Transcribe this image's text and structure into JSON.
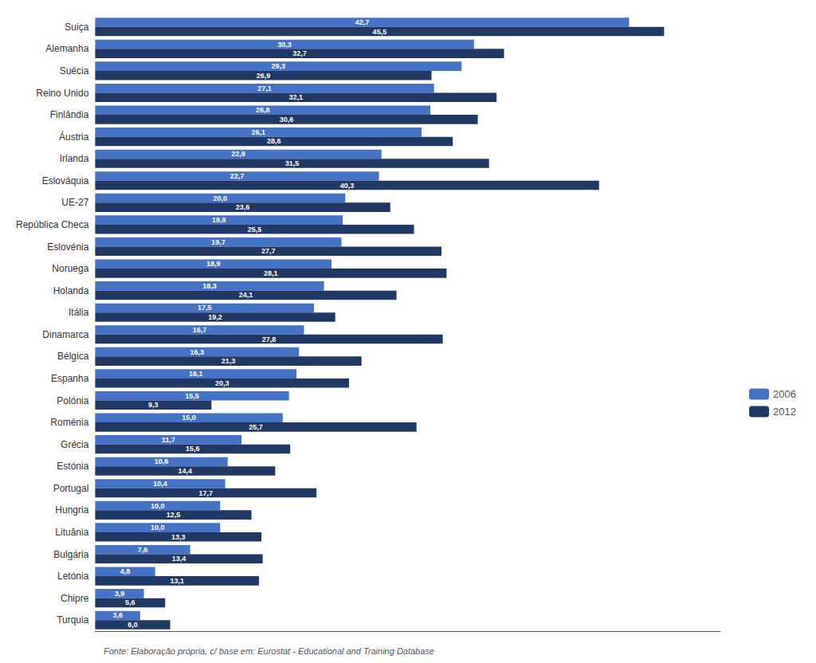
{
  "chart_data": {
    "type": "bar",
    "orientation": "horizontal",
    "categories": [
      "Suiça",
      "Alemanha",
      "Suécia",
      "Reino Unido",
      "Finlândia",
      "Áustria",
      "Irlanda",
      "Eslováquia",
      "UE-27",
      "República Checa",
      "Eslovénia",
      "Noruega",
      "Holanda",
      "Itália",
      "Dinamarca",
      "Bélgica",
      "Espanha",
      "Polónia",
      "Roménia",
      "Grécia",
      "Estónia",
      "Portugal",
      "Hungria",
      "Lituânia",
      "Bulgária",
      "Letónia",
      "Chipre",
      "Turquia"
    ],
    "series": [
      {
        "name": "2006",
        "color": "#4472C4",
        "values": [
          42.7,
          30.3,
          29.3,
          27.1,
          26.8,
          26.1,
          22.9,
          22.7,
          20.0,
          19.8,
          19.7,
          18.9,
          18.3,
          17.5,
          16.7,
          16.3,
          16.1,
          15.5,
          15.0,
          11.7,
          10.6,
          10.4,
          10.0,
          10.0,
          7.6,
          4.8,
          3.9,
          3.6
        ],
        "value_labels": [
          "42,7",
          "30,3",
          "29,3",
          "27,1",
          "26,8",
          "26,1",
          "22,9",
          "22,7",
          "20,0",
          "19,8",
          "19,7",
          "18,9",
          "18,3",
          "17,5",
          "16,7",
          "16,3",
          "16,1",
          "15,5",
          "15,0",
          "11,7",
          "10,6",
          "10,4",
          "10,0",
          "10,0",
          "7,6",
          "4,8",
          "3,9",
          "3,6"
        ]
      },
      {
        "name": "2012",
        "color": "#1F3864",
        "values": [
          45.5,
          32.7,
          26.9,
          32.1,
          30.6,
          28.6,
          31.5,
          40.3,
          23.6,
          25.5,
          27.7,
          28.1,
          24.1,
          19.2,
          27.8,
          21.3,
          20.3,
          9.3,
          25.7,
          15.6,
          14.4,
          17.7,
          12.5,
          13.3,
          13.4,
          13.1,
          5.6,
          6.0
        ],
        "value_labels": [
          "45,5",
          "32,7",
          "26,9",
          "32,1",
          "30,6",
          "28,6",
          "31,5",
          "40,3",
          "23,6",
          "25,5",
          "27,7",
          "28,1",
          "24,1",
          "19,2",
          "27,8",
          "21,3",
          "20,3",
          "9,3",
          "25,7",
          "15,6",
          "14,4",
          "17,7",
          "12,5",
          "13,3",
          "13,4",
          "13,1",
          "5,6",
          "6,0"
        ]
      }
    ],
    "xlim": [
      0,
      50
    ],
    "data_labels": true,
    "tick_labels": "y",
    "grid": false,
    "legend": "right",
    "annotations": [
      "Fonte: Elaboração própria, c/ base em: Eurostat - Educational and Training Database"
    ]
  }
}
